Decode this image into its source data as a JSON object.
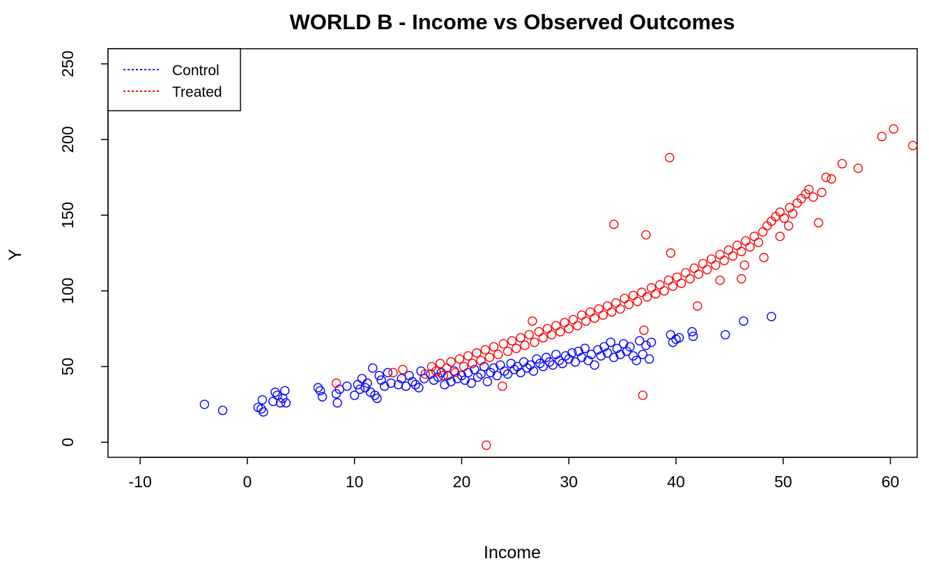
{
  "chart_data": {
    "type": "scatter",
    "title": "WORLD B - Income vs Observed Outcomes",
    "xlabel": "Income",
    "ylabel": "Y",
    "xlim": [
      -13,
      62.5
    ],
    "ylim": [
      -10,
      260
    ],
    "x_ticks": [
      -10,
      0,
      10,
      20,
      30,
      40,
      50,
      60
    ],
    "y_ticks": [
      0,
      50,
      100,
      150,
      200,
      250
    ],
    "grid": false,
    "legend_position": "top-left",
    "series": [
      {
        "name": "Control",
        "color": "#0000ff",
        "marker": "open-circle",
        "points": [
          [
            -4,
            25
          ],
          [
            -2.3,
            21
          ],
          [
            1,
            23
          ],
          [
            1.3,
            22
          ],
          [
            1.4,
            28
          ],
          [
            1.5,
            20
          ],
          [
            2.4,
            27
          ],
          [
            2.6,
            33
          ],
          [
            2.8,
            31
          ],
          [
            3.1,
            26
          ],
          [
            3.3,
            29
          ],
          [
            3.5,
            34
          ],
          [
            3.6,
            26
          ],
          [
            6.6,
            36
          ],
          [
            6.8,
            34
          ],
          [
            7,
            30
          ],
          [
            8.3,
            32
          ],
          [
            8.4,
            26
          ],
          [
            8.6,
            35
          ],
          [
            9.3,
            37
          ],
          [
            10,
            31
          ],
          [
            10.3,
            38
          ],
          [
            10.5,
            35
          ],
          [
            10.7,
            42
          ],
          [
            11,
            36
          ],
          [
            11.2,
            39
          ],
          [
            11.5,
            33
          ],
          [
            11.7,
            49
          ],
          [
            11.9,
            31
          ],
          [
            12.1,
            29
          ],
          [
            12.3,
            44
          ],
          [
            12.5,
            41
          ],
          [
            12.8,
            37
          ],
          [
            13.1,
            46
          ],
          [
            13.4,
            39
          ],
          [
            14.1,
            38
          ],
          [
            14.4,
            42
          ],
          [
            14.8,
            37
          ],
          [
            15.1,
            44
          ],
          [
            15.4,
            40
          ],
          [
            15.7,
            38
          ],
          [
            16,
            36
          ],
          [
            16.2,
            47
          ],
          [
            16.5,
            42
          ],
          [
            17.1,
            45
          ],
          [
            17.4,
            41
          ],
          [
            17.8,
            43
          ],
          [
            18.1,
            46
          ],
          [
            18.4,
            38
          ],
          [
            18.7,
            44
          ],
          [
            19,
            40
          ],
          [
            19.3,
            47
          ],
          [
            19.6,
            42
          ],
          [
            20,
            44
          ],
          [
            20.3,
            41
          ],
          [
            20.6,
            46
          ],
          [
            20.9,
            39
          ],
          [
            21.2,
            48
          ],
          [
            21.5,
            43
          ],
          [
            21.8,
            45
          ],
          [
            22.1,
            50
          ],
          [
            22.4,
            40
          ],
          [
            22.7,
            46
          ],
          [
            23,
            49
          ],
          [
            23.3,
            44
          ],
          [
            23.6,
            51
          ],
          [
            24,
            47
          ],
          [
            24.3,
            45
          ],
          [
            24.6,
            52
          ],
          [
            24.9,
            48
          ],
          [
            25.2,
            50
          ],
          [
            25.5,
            46
          ],
          [
            25.8,
            53
          ],
          [
            26.1,
            49
          ],
          [
            26.4,
            51
          ],
          [
            26.7,
            47
          ],
          [
            27,
            55
          ],
          [
            27.3,
            52
          ],
          [
            27.6,
            50
          ],
          [
            27.9,
            56
          ],
          [
            28.2,
            53
          ],
          [
            28.5,
            51
          ],
          [
            28.8,
            58
          ],
          [
            29.1,
            54
          ],
          [
            29.4,
            52
          ],
          [
            29.7,
            57
          ],
          [
            30,
            55
          ],
          [
            30.3,
            59
          ],
          [
            30.6,
            53
          ],
          [
            30.9,
            60
          ],
          [
            31.2,
            56
          ],
          [
            31.5,
            62
          ],
          [
            31.8,
            54
          ],
          [
            32.1,
            58
          ],
          [
            32.4,
            51
          ],
          [
            32.7,
            61
          ],
          [
            33,
            57
          ],
          [
            33.3,
            63
          ],
          [
            33.6,
            59
          ],
          [
            33.9,
            66
          ],
          [
            34.2,
            56
          ],
          [
            34.5,
            62
          ],
          [
            34.8,
            58
          ],
          [
            35.1,
            65
          ],
          [
            35.4,
            60
          ],
          [
            35.7,
            63
          ],
          [
            36,
            57
          ],
          [
            36.3,
            54
          ],
          [
            36.6,
            67
          ],
          [
            36.9,
            58
          ],
          [
            37.2,
            64
          ],
          [
            37.5,
            55
          ],
          [
            37.7,
            66
          ],
          [
            39.5,
            71
          ],
          [
            39.7,
            66
          ],
          [
            40,
            68
          ],
          [
            40.3,
            69
          ],
          [
            41.5,
            73
          ],
          [
            41.6,
            70
          ],
          [
            44.6,
            71
          ],
          [
            46.3,
            80
          ],
          [
            48.9,
            83
          ]
        ]
      },
      {
        "name": "Treated",
        "color": "#ff0000",
        "marker": "open-circle",
        "points": [
          [
            8.3,
            39
          ],
          [
            13.6,
            46
          ],
          [
            14.5,
            48
          ],
          [
            16.6,
            45
          ],
          [
            17.2,
            50
          ],
          [
            17.6,
            47
          ],
          [
            18,
            52
          ],
          [
            18.3,
            44
          ],
          [
            18.6,
            49
          ],
          [
            19,
            53
          ],
          [
            19.4,
            46
          ],
          [
            19.8,
            55
          ],
          [
            20.2,
            50
          ],
          [
            20.6,
            57
          ],
          [
            21,
            52
          ],
          [
            21.4,
            59
          ],
          [
            21.8,
            54
          ],
          [
            22.2,
            61
          ],
          [
            22.3,
            -2
          ],
          [
            22.6,
            56
          ],
          [
            23,
            63
          ],
          [
            23.4,
            58
          ],
          [
            23.8,
            37
          ],
          [
            23.9,
            65
          ],
          [
            24.3,
            60
          ],
          [
            24.7,
            67
          ],
          [
            25.1,
            62
          ],
          [
            25.5,
            69
          ],
          [
            25.9,
            64
          ],
          [
            26.3,
            71
          ],
          [
            26.6,
            80
          ],
          [
            26.8,
            66
          ],
          [
            27.2,
            73
          ],
          [
            27.6,
            69
          ],
          [
            28,
            75
          ],
          [
            28.4,
            71
          ],
          [
            28.8,
            77
          ],
          [
            29.2,
            73
          ],
          [
            29.6,
            79
          ],
          [
            30,
            75
          ],
          [
            30.4,
            81
          ],
          [
            30.8,
            77
          ],
          [
            31.2,
            84
          ],
          [
            31.6,
            80
          ],
          [
            32,
            86
          ],
          [
            32.4,
            82
          ],
          [
            32.8,
            88
          ],
          [
            33.2,
            84
          ],
          [
            33.6,
            90
          ],
          [
            34,
            86
          ],
          [
            34.2,
            144
          ],
          [
            34.4,
            92
          ],
          [
            34.8,
            88
          ],
          [
            35.2,
            95
          ],
          [
            35.6,
            91
          ],
          [
            36,
            97
          ],
          [
            36.4,
            93
          ],
          [
            36.8,
            99
          ],
          [
            36.9,
            31
          ],
          [
            37,
            74
          ],
          [
            37.2,
            137
          ],
          [
            37.3,
            96
          ],
          [
            37.7,
            102
          ],
          [
            38.1,
            98
          ],
          [
            38.5,
            104
          ],
          [
            38.9,
            100
          ],
          [
            39.3,
            107
          ],
          [
            39.4,
            188
          ],
          [
            39.5,
            125
          ],
          [
            39.7,
            103
          ],
          [
            40.1,
            109
          ],
          [
            40.5,
            105
          ],
          [
            40.9,
            112
          ],
          [
            41.3,
            108
          ],
          [
            41.7,
            115
          ],
          [
            42,
            90
          ],
          [
            42.1,
            111
          ],
          [
            42.5,
            118
          ],
          [
            42.9,
            114
          ],
          [
            43.3,
            121
          ],
          [
            43.7,
            117
          ],
          [
            44.1,
            124
          ],
          [
            44.1,
            107
          ],
          [
            44.5,
            120
          ],
          [
            44.9,
            127
          ],
          [
            45.3,
            123
          ],
          [
            45.7,
            130
          ],
          [
            46.1,
            126
          ],
          [
            46.1,
            108
          ],
          [
            46.4,
            117
          ],
          [
            46.5,
            133
          ],
          [
            46.9,
            129
          ],
          [
            47.3,
            136
          ],
          [
            47.7,
            132
          ],
          [
            48.1,
            139
          ],
          [
            48.2,
            122
          ],
          [
            48.5,
            143
          ],
          [
            48.9,
            146
          ],
          [
            49.3,
            149
          ],
          [
            49.7,
            152
          ],
          [
            49.7,
            136
          ],
          [
            50.1,
            148
          ],
          [
            50.5,
            143
          ],
          [
            50.6,
            155
          ],
          [
            50.9,
            151
          ],
          [
            51.3,
            158
          ],
          [
            51.7,
            161
          ],
          [
            52.1,
            164
          ],
          [
            52.4,
            167
          ],
          [
            52.8,
            162
          ],
          [
            53.3,
            145
          ],
          [
            53.6,
            165
          ],
          [
            54,
            175
          ],
          [
            54.5,
            174
          ],
          [
            55.5,
            184
          ],
          [
            57,
            181
          ],
          [
            59.2,
            202
          ],
          [
            60.3,
            207
          ],
          [
            62.1,
            196
          ]
        ]
      }
    ]
  }
}
